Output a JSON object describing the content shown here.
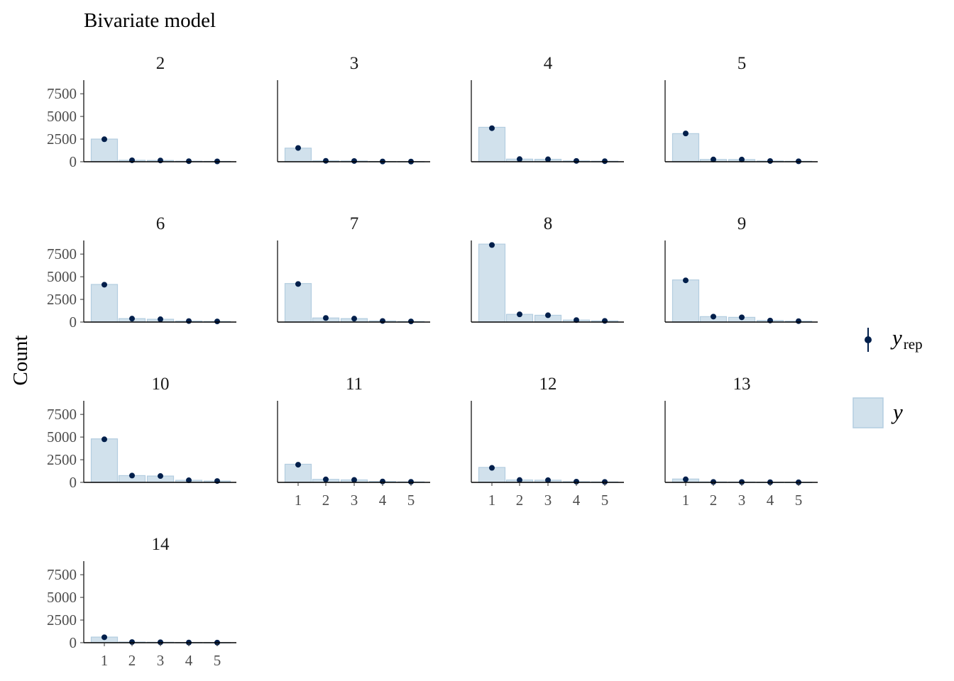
{
  "chart_data": {
    "type": "bar",
    "title": "Bivariate model",
    "ylabel": "Count",
    "xlabel": "",
    "categories": [
      "1",
      "2",
      "3",
      "4",
      "5"
    ],
    "ylim": [
      0,
      9000
    ],
    "yticks": [
      0,
      2500,
      5000,
      7500
    ],
    "grid": false,
    "legend": {
      "position": "right",
      "entries": [
        {
          "symbol": "point-range",
          "label": "y",
          "sub": "rep"
        },
        {
          "symbol": "bar",
          "label": "y",
          "sub": ""
        }
      ]
    },
    "colors": {
      "bar_fill": "#d1e1ec",
      "bar_edge": "#b3cde0",
      "point": "#011f4b"
    },
    "panels": [
      {
        "label": "2",
        "y": [
          2500,
          160,
          140,
          60,
          40
        ],
        "yrep": [
          2480,
          160,
          140,
          60,
          40
        ]
      },
      {
        "label": "3",
        "y": [
          1500,
          100,
          80,
          30,
          20
        ],
        "yrep": [
          1520,
          100,
          80,
          30,
          20
        ]
      },
      {
        "label": "4",
        "y": [
          3800,
          290,
          270,
          90,
          60
        ],
        "yrep": [
          3700,
          290,
          270,
          90,
          60
        ]
      },
      {
        "label": "5",
        "y": [
          3100,
          250,
          240,
          80,
          50
        ],
        "yrep": [
          3120,
          250,
          240,
          80,
          50
        ]
      },
      {
        "label": "6",
        "y": [
          4150,
          380,
          310,
          110,
          70
        ],
        "yrep": [
          4120,
          380,
          310,
          110,
          70
        ]
      },
      {
        "label": "7",
        "y": [
          4250,
          450,
          380,
          120,
          70
        ],
        "yrep": [
          4200,
          450,
          380,
          120,
          70
        ]
      },
      {
        "label": "8",
        "y": [
          8600,
          850,
          750,
          220,
          130
        ],
        "yrep": [
          8500,
          850,
          750,
          220,
          130
        ]
      },
      {
        "label": "9",
        "y": [
          4650,
          600,
          520,
          170,
          100
        ],
        "yrep": [
          4600,
          600,
          520,
          170,
          100
        ]
      },
      {
        "label": "10",
        "y": [
          4800,
          750,
          700,
          230,
          150
        ],
        "yrep": [
          4750,
          750,
          700,
          230,
          150
        ]
      },
      {
        "label": "11",
        "y": [
          2000,
          330,
          270,
          100,
          60
        ],
        "yrep": [
          1950,
          330,
          270,
          100,
          60
        ]
      },
      {
        "label": "12",
        "y": [
          1650,
          260,
          240,
          80,
          50
        ],
        "yrep": [
          1600,
          260,
          240,
          80,
          50
        ]
      },
      {
        "label": "13",
        "y": [
          370,
          50,
          40,
          20,
          10
        ],
        "yrep": [
          340,
          50,
          40,
          20,
          10
        ]
      },
      {
        "label": "14",
        "y": [
          620,
          70,
          50,
          20,
          10
        ],
        "yrep": [
          600,
          70,
          50,
          20,
          10
        ]
      }
    ]
  }
}
